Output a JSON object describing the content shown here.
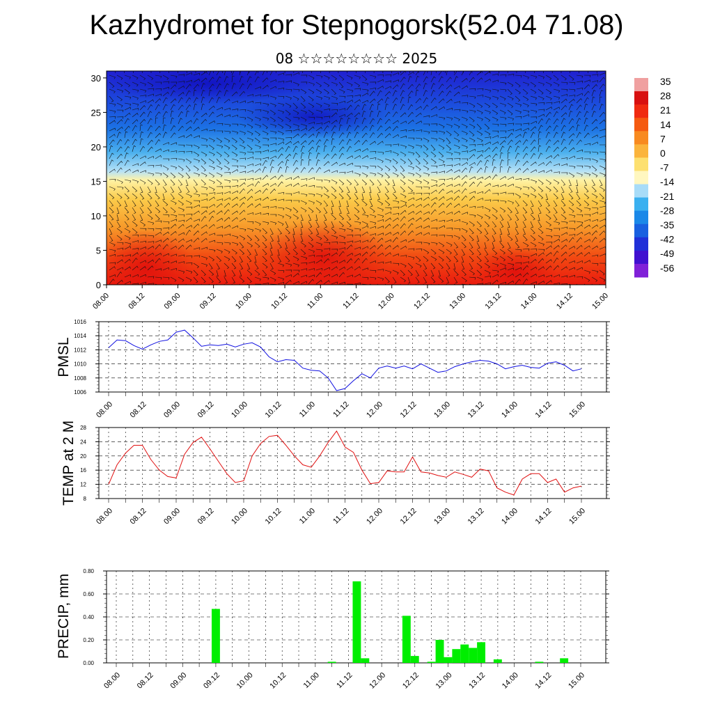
{
  "header": {
    "title": "Kazhydromet for Stepnogorsk(52.04 71.08)",
    "subtitle": "08 ☆☆☆☆☆☆☆☆ 2025"
  },
  "chart_data": [
    {
      "id": "cross-section",
      "type": "heatmap",
      "description_level": "temperature cross-section with wind barbs",
      "x_ticks": [
        "08.00",
        "08.12",
        "09.00",
        "09.12",
        "10.00",
        "10.12",
        "11.00",
        "11.12",
        "12.00",
        "12.12",
        "13.00",
        "13.12",
        "14.00",
        "14.12",
        "15.00"
      ],
      "y_ticks": [
        0,
        5,
        10,
        15,
        20,
        25,
        30
      ],
      "ylim": [
        0,
        31
      ],
      "colorbar": {
        "labels": [
          "35",
          "28",
          "21",
          "14",
          "7",
          "0",
          "-7",
          "-14",
          "-21",
          "-28",
          "-35",
          "-42",
          "-49",
          "-56"
        ],
        "colors": [
          "#f0a0a0",
          "#d81010",
          "#f02a10",
          "#f55a10",
          "#f88a20",
          "#fbb43c",
          "#fde070",
          "#fff7c0",
          "#a8dcf8",
          "#3ab0f0",
          "#1a88e8",
          "#1860e0",
          "#2030d8",
          "#4010d0",
          "#8020d8"
        ]
      },
      "colors": {
        "hot": "#e81a10",
        "warm": "#f79a2a",
        "mild": "#fde86a",
        "cool": "#7cc8f2",
        "cold": "#1c5ce0",
        "coldest": "#2010c8"
      }
    },
    {
      "id": "pmsl",
      "type": "line",
      "ylabel": "PMSL",
      "ylim": [
        1006,
        1016
      ],
      "y_ticks": [
        1006,
        1008,
        1010,
        1012,
        1014,
        1016
      ],
      "x_ticks": [
        "08.00",
        "08.12",
        "09.00",
        "09.12",
        "10.00",
        "10.12",
        "11.00",
        "11.12",
        "12.00",
        "12.12",
        "13.00",
        "13.12",
        "14.00",
        "14.12",
        "15.00"
      ],
      "color": "#1010e0",
      "x_hours": [
        0,
        3,
        6,
        9,
        12,
        15,
        18,
        21,
        24,
        27,
        30,
        33,
        36,
        39,
        42,
        45,
        48,
        51,
        54,
        57,
        60,
        63,
        66,
        69,
        72,
        75,
        78,
        81,
        84,
        87,
        90,
        93,
        96,
        99,
        102,
        105,
        108,
        111,
        114,
        117,
        120,
        123,
        126,
        129,
        132,
        135,
        138,
        141,
        144,
        147,
        150,
        153,
        156,
        159,
        162,
        165,
        168
      ],
      "values": [
        1012.3,
        1013.4,
        1013.3,
        1012.6,
        1012.1,
        1012.7,
        1013.2,
        1013.4,
        1014.5,
        1014.8,
        1013.7,
        1012.5,
        1012.7,
        1012.6,
        1012.8,
        1012.4,
        1012.8,
        1013.0,
        1012.4,
        1011.0,
        1010.3,
        1010.6,
        1010.5,
        1009.4,
        1009.1,
        1009.0,
        1008.0,
        1006.2,
        1006.5,
        1007.6,
        1008.6,
        1008.0,
        1009.4,
        1009.7,
        1009.4,
        1009.7,
        1009.3,
        1010.0,
        1009.4,
        1008.8,
        1009.0,
        1009.6,
        1010.0,
        1010.3,
        1010.5,
        1010.4,
        1010.0,
        1009.3,
        1009.6,
        1009.8,
        1009.5,
        1009.4,
        1010.1,
        1010.3,
        1009.8,
        1009.0,
        1009.3
      ]
    },
    {
      "id": "temp2m",
      "type": "line",
      "ylabel": "TEMP at 2 M",
      "ylim": [
        8,
        28
      ],
      "y_ticks": [
        8,
        12,
        16,
        20,
        24,
        28
      ],
      "x_ticks": [
        "08.00",
        "08.12",
        "09.00",
        "09.12",
        "10.00",
        "10.12",
        "11.00",
        "11.12",
        "12.00",
        "12.12",
        "13.00",
        "13.12",
        "14.00",
        "14.12",
        "15.00"
      ],
      "color": "#e01010",
      "x_hours": [
        0,
        3,
        6,
        9,
        12,
        15,
        18,
        21,
        24,
        27,
        30,
        33,
        36,
        39,
        42,
        45,
        48,
        51,
        54,
        57,
        60,
        63,
        66,
        69,
        72,
        75,
        78,
        81,
        84,
        87,
        90,
        93,
        96,
        99,
        102,
        105,
        108,
        111,
        114,
        117,
        120,
        123,
        126,
        129,
        132,
        135,
        138,
        141,
        144,
        147,
        150,
        153,
        156,
        159,
        162,
        165,
        168
      ],
      "values": [
        12.0,
        17.5,
        20.8,
        23.0,
        23.0,
        19.0,
        16.0,
        14.2,
        13.8,
        20.5,
        23.8,
        25.3,
        22.0,
        18.5,
        15.0,
        12.5,
        13.0,
        20.0,
        23.5,
        25.5,
        25.8,
        23.0,
        20.0,
        17.5,
        16.8,
        20.0,
        23.8,
        27.0,
        22.5,
        21.0,
        16.0,
        12.2,
        12.5,
        15.8,
        15.5,
        15.5,
        19.7,
        15.5,
        15.2,
        14.5,
        14.0,
        15.5,
        14.8,
        14.0,
        16.3,
        15.8,
        11.0,
        9.8,
        9.0,
        13.5,
        15.0,
        15.0,
        12.5,
        13.5,
        9.8,
        11.0,
        11.5
      ]
    },
    {
      "id": "precip",
      "type": "bar",
      "ylabel": "PRECIP, mm",
      "ylim": [
        0,
        0.8
      ],
      "y_ticks": [
        "0.00",
        "0.20",
        "0.40",
        "0.60",
        "0.80"
      ],
      "x_ticks": [
        "08.00",
        "08.12",
        "09.00",
        "09.12",
        "10.00",
        "10.12",
        "11.00",
        "11.12",
        "12.00",
        "12.12",
        "13.00",
        "13.12",
        "14.00",
        "14.12",
        "15.00"
      ],
      "color": "#00ee00",
      "x_hours": [
        36,
        78,
        87,
        90,
        105,
        108,
        114,
        117,
        120,
        123,
        126,
        129,
        132,
        135,
        138,
        144,
        153,
        162
      ],
      "values": [
        0.47,
        0.01,
        0.71,
        0.04,
        0.41,
        0.06,
        0.01,
        0.2,
        0.05,
        0.12,
        0.16,
        0.13,
        0.18,
        0.0,
        0.03,
        0.0,
        0.01,
        0.04
      ]
    }
  ]
}
